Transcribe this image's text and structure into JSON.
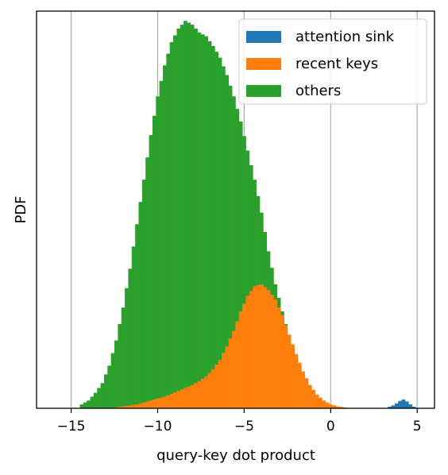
{
  "chart_data": {
    "type": "bar",
    "subtype": "histogram",
    "title": "",
    "xlabel": "query-key dot product",
    "ylabel": "PDF",
    "xlim": [
      -17,
      6
    ],
    "ylim": [
      0,
      0.205
    ],
    "x_ticks": [
      -15,
      -10,
      -5,
      0,
      5
    ],
    "x_tick_labels": [
      "−15",
      "−10",
      "−5",
      "0",
      "5"
    ],
    "y_ticks_shown": false,
    "grid": "vertical",
    "bin_width": 0.2,
    "legend_position": "top-right",
    "series": [
      {
        "name": "others",
        "color": "#2ca02c",
        "bins": [
          {
            "x": -14.4,
            "y": 0.002
          },
          {
            "x": -14.0,
            "y": 0.004
          },
          {
            "x": -13.6,
            "y": 0.008
          },
          {
            "x": -13.2,
            "y": 0.013
          },
          {
            "x": -12.8,
            "y": 0.022
          },
          {
            "x": -12.4,
            "y": 0.035
          },
          {
            "x": -12.0,
            "y": 0.052
          },
          {
            "x": -11.6,
            "y": 0.072
          },
          {
            "x": -11.2,
            "y": 0.095
          },
          {
            "x": -10.8,
            "y": 0.118
          },
          {
            "x": -10.4,
            "y": 0.141
          },
          {
            "x": -10.0,
            "y": 0.161
          },
          {
            "x": -9.6,
            "y": 0.177
          },
          {
            "x": -9.2,
            "y": 0.189
          },
          {
            "x": -8.8,
            "y": 0.196
          },
          {
            "x": -8.4,
            "y": 0.2
          },
          {
            "x": -8.0,
            "y": 0.198
          },
          {
            "x": -7.6,
            "y": 0.194
          },
          {
            "x": -7.2,
            "y": 0.192
          },
          {
            "x": -6.8,
            "y": 0.187
          },
          {
            "x": -6.4,
            "y": 0.181
          },
          {
            "x": -6.0,
            "y": 0.172
          },
          {
            "x": -5.6,
            "y": 0.161
          },
          {
            "x": -5.2,
            "y": 0.148
          },
          {
            "x": -4.8,
            "y": 0.133
          },
          {
            "x": -4.4,
            "y": 0.118
          },
          {
            "x": -4.0,
            "y": 0.101
          },
          {
            "x": -3.6,
            "y": 0.081
          },
          {
            "x": -3.2,
            "y": 0.064
          },
          {
            "x": -2.8,
            "y": 0.05
          },
          {
            "x": -2.4,
            "y": 0.037
          },
          {
            "x": -2.0,
            "y": 0.026
          },
          {
            "x": -1.6,
            "y": 0.017
          },
          {
            "x": -1.2,
            "y": 0.01
          },
          {
            "x": -0.8,
            "y": 0.006
          },
          {
            "x": -0.4,
            "y": 0.003
          },
          {
            "x": 0.0,
            "y": 0.0015
          },
          {
            "x": 0.4,
            "y": 0.0008
          },
          {
            "x": 0.8,
            "y": 0.0004
          }
        ]
      },
      {
        "name": "recent keys",
        "color": "#ff7f0e",
        "bins": [
          {
            "x": -12.4,
            "y": 0.0005
          },
          {
            "x": -12.0,
            "y": 0.001
          },
          {
            "x": -11.6,
            "y": 0.0015
          },
          {
            "x": -11.2,
            "y": 0.002
          },
          {
            "x": -10.8,
            "y": 0.003
          },
          {
            "x": -10.4,
            "y": 0.004
          },
          {
            "x": -10.0,
            "y": 0.005
          },
          {
            "x": -9.6,
            "y": 0.006
          },
          {
            "x": -9.2,
            "y": 0.0075
          },
          {
            "x": -8.8,
            "y": 0.009
          },
          {
            "x": -8.4,
            "y": 0.0105
          },
          {
            "x": -8.0,
            "y": 0.012
          },
          {
            "x": -7.6,
            "y": 0.014
          },
          {
            "x": -7.2,
            "y": 0.0165
          },
          {
            "x": -6.8,
            "y": 0.02
          },
          {
            "x": -6.4,
            "y": 0.025
          },
          {
            "x": -6.0,
            "y": 0.032
          },
          {
            "x": -5.6,
            "y": 0.04
          },
          {
            "x": -5.2,
            "y": 0.05
          },
          {
            "x": -4.8,
            "y": 0.058
          },
          {
            "x": -4.4,
            "y": 0.063
          },
          {
            "x": -4.0,
            "y": 0.064
          },
          {
            "x": -3.6,
            "y": 0.061
          },
          {
            "x": -3.2,
            "y": 0.056
          },
          {
            "x": -2.8,
            "y": 0.048
          },
          {
            "x": -2.4,
            "y": 0.038
          },
          {
            "x": -2.0,
            "y": 0.028
          },
          {
            "x": -1.6,
            "y": 0.019
          },
          {
            "x": -1.2,
            "y": 0.012
          },
          {
            "x": -0.8,
            "y": 0.007
          },
          {
            "x": -0.4,
            "y": 0.004
          },
          {
            "x": 0.0,
            "y": 0.002
          },
          {
            "x": 0.4,
            "y": 0.001
          },
          {
            "x": 0.8,
            "y": 0.0005
          }
        ]
      },
      {
        "name": "attention sink",
        "color": "#1f77b4",
        "bins": [
          {
            "x": 3.4,
            "y": 0.0008
          },
          {
            "x": 3.6,
            "y": 0.0015
          },
          {
            "x": 3.8,
            "y": 0.0025
          },
          {
            "x": 4.0,
            "y": 0.0038
          },
          {
            "x": 4.2,
            "y": 0.0045
          },
          {
            "x": 4.4,
            "y": 0.0035
          },
          {
            "x": 4.6,
            "y": 0.002
          },
          {
            "x": 4.8,
            "y": 0.0008
          }
        ]
      }
    ],
    "legend": [
      "attention sink",
      "recent keys",
      "others"
    ]
  }
}
